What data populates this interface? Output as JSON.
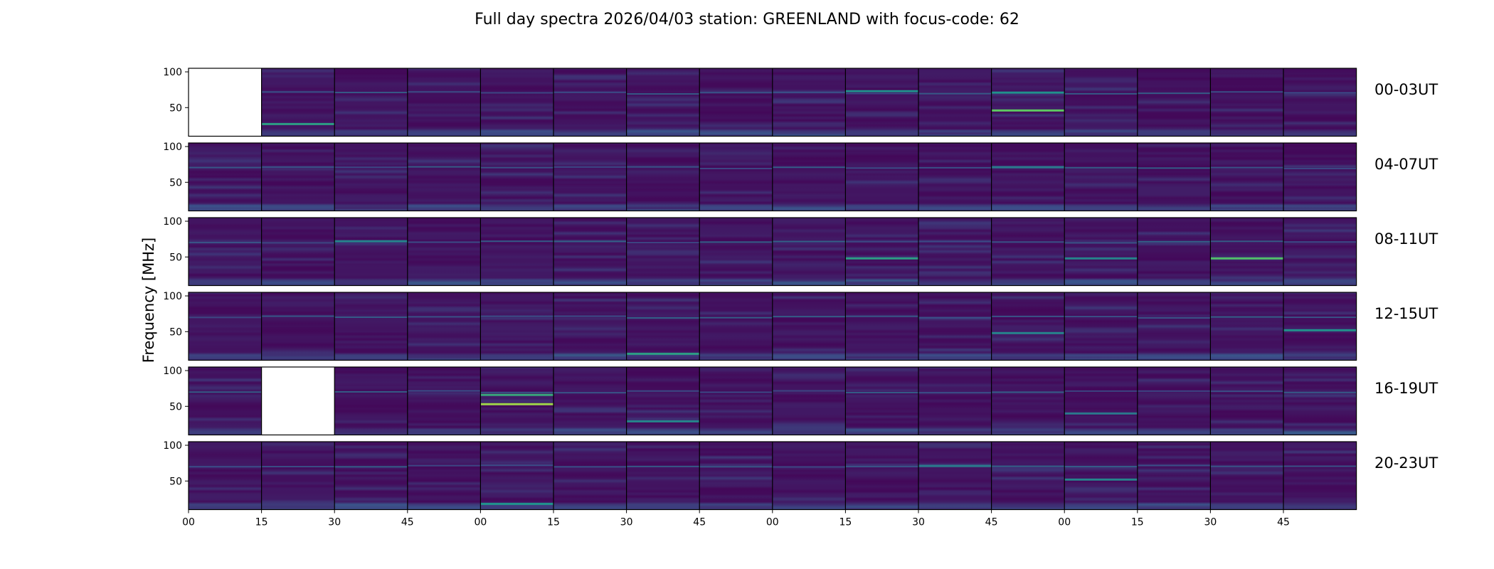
{
  "chart_data": {
    "type": "heatmap",
    "title": "Full day spectra 2026/04/03 station: GREENLAND with focus-code: 62",
    "ylabel": "Frequency [MHz]",
    "xlabel": "",
    "ylim": [
      10,
      105
    ],
    "y_ticks": [
      100,
      50
    ],
    "x_tick_labels": [
      "00",
      "15",
      "30",
      "45",
      "00",
      "15",
      "30",
      "45",
      "00",
      "15",
      "30",
      "45",
      "00",
      "15",
      "30",
      "45"
    ],
    "colormap": [
      "#440154",
      "#3b528b",
      "#21918c",
      "#5ec962",
      "#fde725"
    ],
    "panels_per_row": 16,
    "rows": [
      {
        "label": "00-03UT",
        "missing_panels": [
          0
        ]
      },
      {
        "label": "04-07UT",
        "missing_panels": []
      },
      {
        "label": "08-11UT",
        "missing_panels": []
      },
      {
        "label": "12-15UT",
        "missing_panels": []
      },
      {
        "label": "16-19UT",
        "missing_panels": [
          1
        ]
      },
      {
        "label": "20-23UT",
        "missing_panels": []
      }
    ],
    "bright_features": [
      {
        "row": 0,
        "panel": 1,
        "freq": 27,
        "intensity": 0.55
      },
      {
        "row": 0,
        "panel": 9,
        "freq": 73,
        "intensity": 0.5
      },
      {
        "row": 0,
        "panel": 11,
        "freq": 46,
        "intensity": 0.75
      },
      {
        "row": 0,
        "panel": 11,
        "freq": 71,
        "intensity": 0.5
      },
      {
        "row": 1,
        "panel": 11,
        "freq": 71,
        "intensity": 0.4
      },
      {
        "row": 2,
        "panel": 2,
        "freq": 72,
        "intensity": 0.45
      },
      {
        "row": 2,
        "panel": 9,
        "freq": 48,
        "intensity": 0.55
      },
      {
        "row": 2,
        "panel": 12,
        "freq": 48,
        "intensity": 0.45
      },
      {
        "row": 2,
        "panel": 14,
        "freq": 48,
        "intensity": 0.7
      },
      {
        "row": 3,
        "panel": 6,
        "freq": 19,
        "intensity": 0.55
      },
      {
        "row": 3,
        "panel": 11,
        "freq": 48,
        "intensity": 0.45
      },
      {
        "row": 3,
        "panel": 15,
        "freq": 52,
        "intensity": 0.5
      },
      {
        "row": 4,
        "panel": 4,
        "freq": 53,
        "intensity": 0.85
      },
      {
        "row": 4,
        "panel": 4,
        "freq": 66,
        "intensity": 0.6
      },
      {
        "row": 4,
        "panel": 6,
        "freq": 29,
        "intensity": 0.45
      },
      {
        "row": 4,
        "panel": 12,
        "freq": 40,
        "intensity": 0.4
      },
      {
        "row": 5,
        "panel": 4,
        "freq": 18,
        "intensity": 0.5
      },
      {
        "row": 5,
        "panel": 10,
        "freq": 71,
        "intensity": 0.4
      },
      {
        "row": 5,
        "panel": 12,
        "freq": 52,
        "intensity": 0.45
      }
    ]
  }
}
